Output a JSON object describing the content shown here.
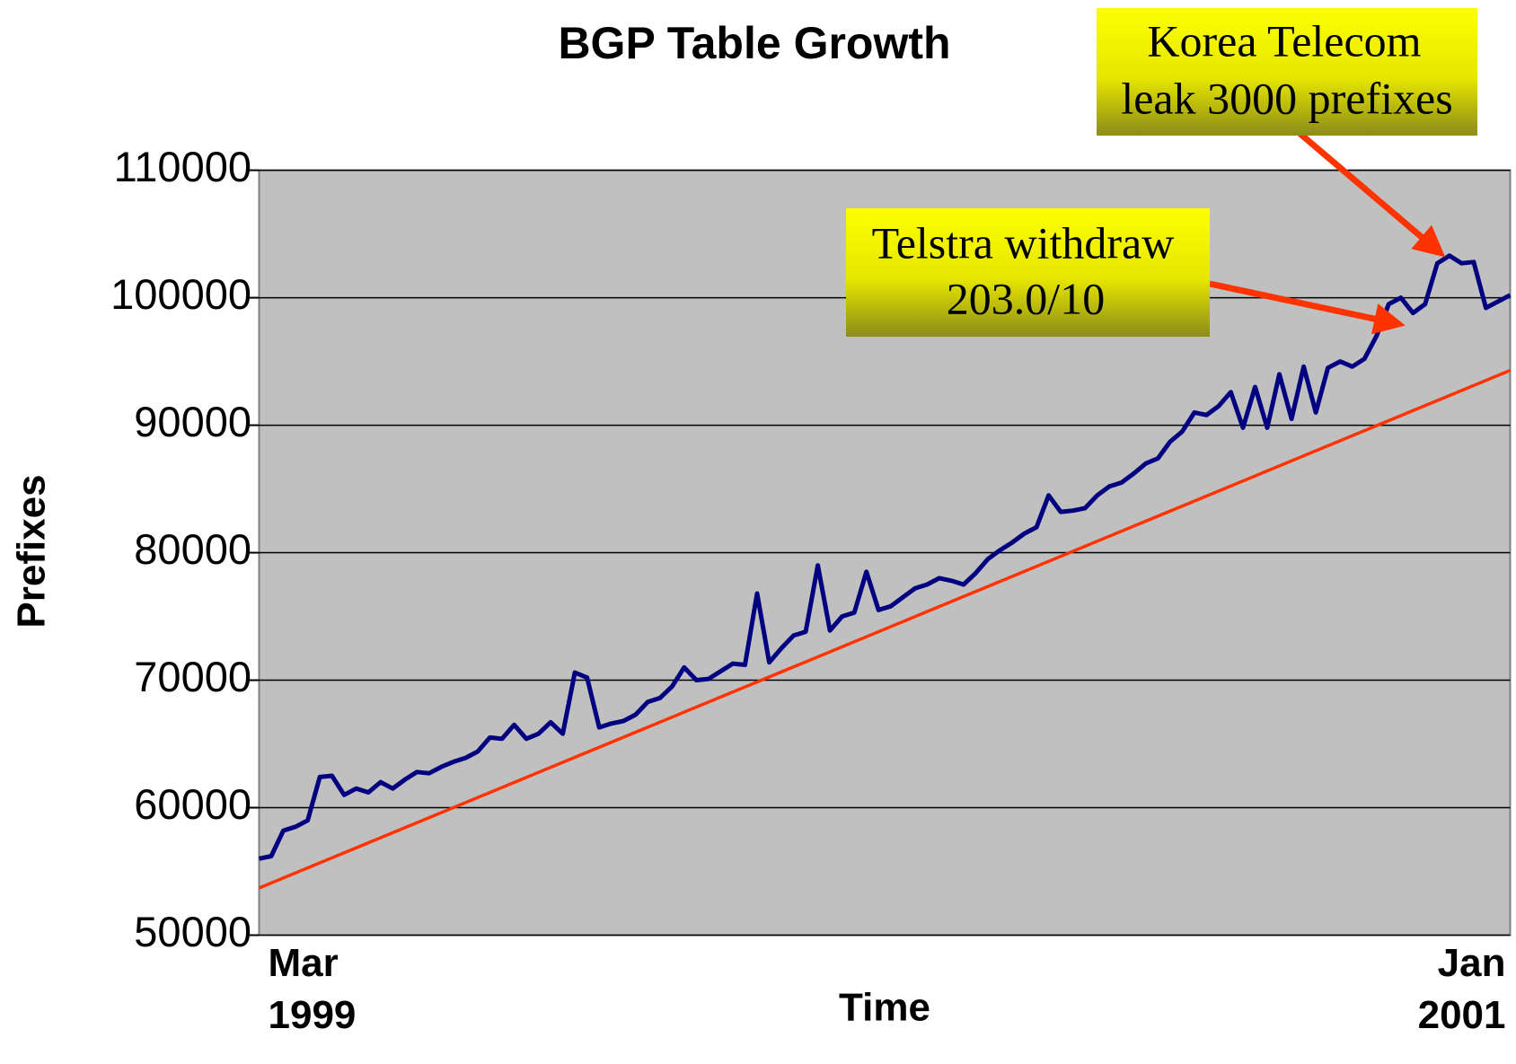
{
  "chart_data": {
    "type": "line",
    "title": "BGP Table Growth",
    "xlabel": "Time",
    "ylabel": "Prefixes",
    "categories": [
      "Mar 1999",
      null,
      null,
      null,
      null,
      null,
      null,
      null,
      null,
      null,
      null,
      null,
      null,
      null,
      null,
      null,
      null,
      null,
      null,
      null,
      null,
      null,
      null,
      null,
      null,
      null,
      null,
      null,
      null,
      null,
      null,
      null,
      null,
      null,
      null,
      null,
      null,
      null,
      null,
      null,
      null,
      null,
      null,
      null,
      null,
      null,
      null,
      null,
      null,
      null,
      null,
      null,
      null,
      null,
      null,
      null,
      null,
      null,
      null,
      null,
      null,
      null,
      null,
      null,
      null,
      null,
      null,
      null,
      null,
      null,
      null,
      null,
      null,
      null,
      null,
      null,
      null,
      null,
      null,
      null,
      null,
      null,
      null,
      null,
      null,
      null,
      null,
      null,
      null,
      null,
      null,
      null,
      null,
      null,
      null,
      null,
      null,
      null,
      null,
      null,
      null,
      null,
      null,
      "Jan 2001"
    ],
    "series": [
      {
        "color": "#000080",
        "values": [
          56000,
          56200,
          58200,
          58500,
          59000,
          62400,
          62500,
          61000,
          61500,
          61200,
          62000,
          61500,
          62200,
          62800,
          62700,
          63200,
          63600,
          63900,
          64400,
          65500,
          65400,
          66500,
          65400,
          65800,
          66700,
          65800,
          70600,
          70200,
          66300,
          66600,
          66800,
          67300,
          68300,
          68600,
          69500,
          71000,
          70000,
          70100,
          70700,
          71300,
          71200,
          76800,
          71400,
          72500,
          73500,
          73800,
          79000,
          73900,
          75000,
          75300,
          78500,
          75500,
          75800,
          76500,
          77200,
          77500,
          78000,
          77800,
          77500,
          78400,
          79500,
          80200,
          80800,
          81500,
          82000,
          84500,
          83200,
          83300,
          83500,
          84500,
          85200,
          85500,
          86200,
          87000,
          87400,
          88700,
          89500,
          91000,
          90800,
          91500,
          92600,
          89800,
          93000,
          89800,
          94000,
          90500,
          94600,
          91000,
          94500,
          95000,
          94600,
          95200,
          97000,
          99500,
          100000,
          98800,
          99500,
          102700,
          103300,
          102700,
          102800,
          99200,
          99700,
          100200
        ]
      }
    ],
    "trend": {
      "color": "#ff3300",
      "values": [
        53700,
        94300
      ]
    },
    "ylim": [
      50000,
      110000
    ],
    "yticks": [
      50000,
      60000,
      70000,
      80000,
      90000,
      100000,
      110000
    ],
    "grid": true,
    "annotations": [
      {
        "lines": [
          "Korea Telecom",
          "leak 3000 prefixes"
        ]
      },
      {
        "lines": [
          "Telstra withdraw",
          "203.0/10"
        ]
      }
    ]
  }
}
